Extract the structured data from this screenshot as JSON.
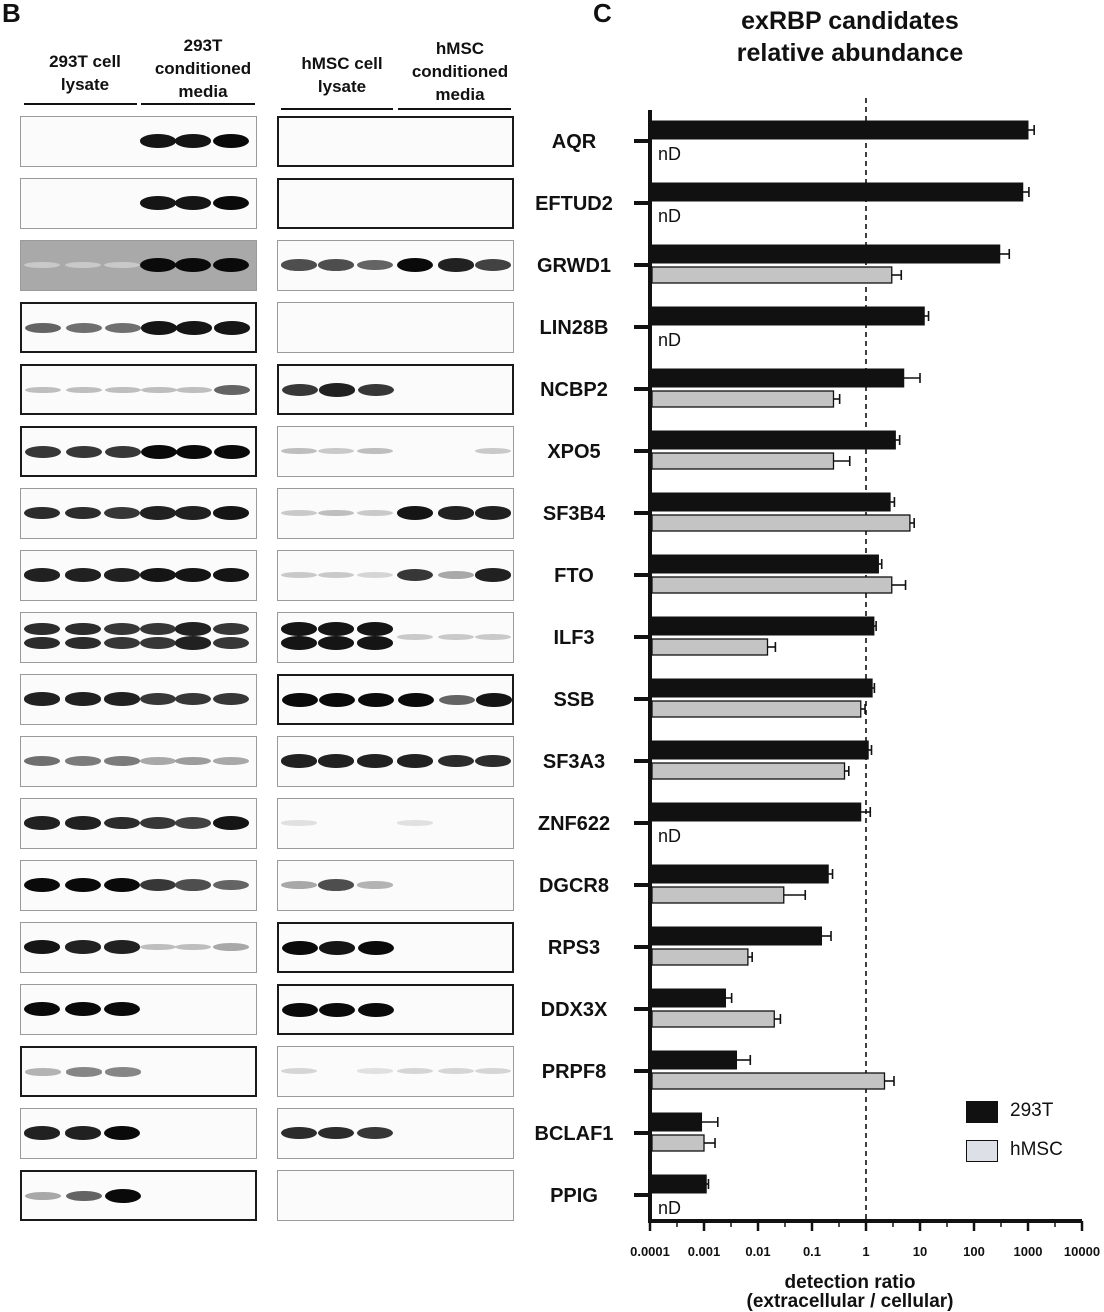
{
  "panel_b": {
    "letter": "B",
    "headers": [
      "293T cell lysate",
      "293T conditioned media",
      "hMSC cell lysate",
      "hMSC conditioned media"
    ]
  },
  "panel_c": {
    "letter": "C",
    "title_line1": "exRBP candidates",
    "title_line2": "relative abundance"
  },
  "nd_label": "nD",
  "colors": {
    "series_293t": "#111111",
    "series_hmsc": "#c4c4c4"
  },
  "chart_data": {
    "type": "bar",
    "orientation": "horizontal",
    "title": "exRBP candidates relative abundance",
    "xlabel_line1": "detection ratio",
    "xlabel_line2": "(extracellular / cellular)",
    "xscale": "log",
    "xlim": [
      0.0001,
      10000
    ],
    "xticks": [
      "0.0001",
      "0.001",
      "0.01",
      "0.1",
      "1",
      "10",
      "100",
      "1000",
      "10000"
    ],
    "reference_line": 1,
    "legend_position": "bottom-right",
    "categories": [
      "AQR",
      "EFTUD2",
      "GRWD1",
      "LIN28B",
      "NCBP2",
      "XPO5",
      "SF3B4",
      "FTO",
      "ILF3",
      "SSB",
      "SF3A3",
      "ZNF622",
      "DGCR8",
      "RPS3",
      "DDX3X",
      "PRPF8",
      "BCLAF1",
      "PPIG"
    ],
    "series": [
      {
        "name": "293T",
        "values": [
          1000,
          800,
          300,
          12,
          5,
          3.5,
          2.8,
          1.7,
          1.4,
          1.3,
          1.1,
          0.8,
          0.2,
          0.15,
          0.0025,
          0.004,
          0.0009,
          0.0011
        ],
        "errors": [
          1.3,
          1.3,
          1.5,
          1.2,
          2.0,
          1.2,
          1.2,
          1.15,
          1.1,
          1.1,
          1.15,
          1.5,
          1.2,
          1.5,
          1.3,
          1.8,
          2.0,
          1.1
        ]
      },
      {
        "name": "hMSC",
        "values": [
          null,
          null,
          3,
          null,
          0.25,
          0.25,
          6.5,
          3,
          0.015,
          0.8,
          0.4,
          null,
          0.03,
          0.0065,
          0.02,
          2.2,
          0.001,
          null
        ],
        "errors": [
          null,
          null,
          1.5,
          null,
          1.3,
          2.0,
          1.2,
          1.8,
          1.4,
          1.2,
          1.2,
          null,
          2.5,
          1.2,
          1.3,
          1.5,
          1.6,
          null
        ]
      }
    ]
  }
}
